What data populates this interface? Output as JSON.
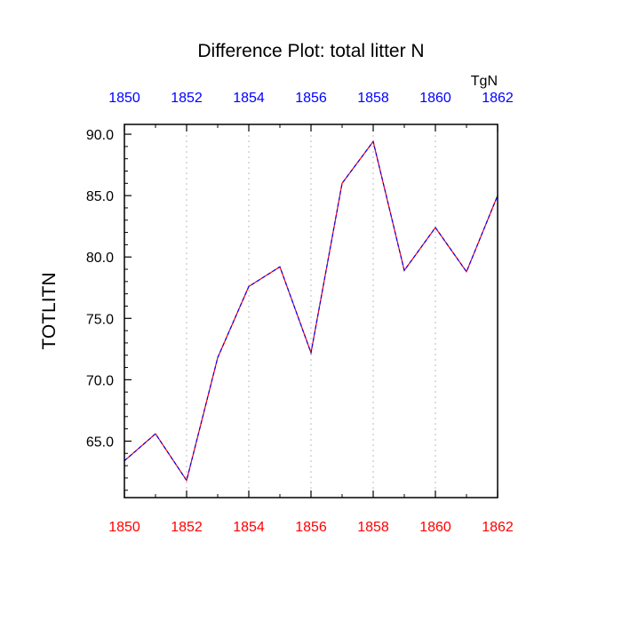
{
  "chart_data": {
    "type": "line",
    "title": "Difference Plot: total litter N",
    "ylabel": "TOTLITN",
    "units_label": "TgN",
    "xlim": [
      1850,
      1862
    ],
    "ylim": [
      60.4,
      90.8
    ],
    "grid": "vertical dotted",
    "x_ticks": [
      "1850",
      "1852",
      "1854",
      "1856",
      "1858",
      "1860",
      "1862"
    ],
    "y_ticks": [
      "65.0",
      "70.0",
      "75.0",
      "80.0",
      "85.0",
      "90.0"
    ],
    "top_tick_color": "#0000ff",
    "bottom_tick_color": "#ff0000",
    "series": [
      {
        "color_a": "#ff0000",
        "color_b": "#0000ff",
        "style": "dashed",
        "x": [
          1850,
          1851,
          1852,
          1853,
          1854,
          1855,
          1856,
          1857,
          1858,
          1859,
          1860,
          1861,
          1862
        ],
        "y": [
          63.4,
          65.6,
          61.8,
          71.8,
          77.6,
          79.2,
          72.2,
          86.0,
          89.4,
          78.9,
          82.4,
          78.8,
          85.0
        ]
      }
    ]
  }
}
